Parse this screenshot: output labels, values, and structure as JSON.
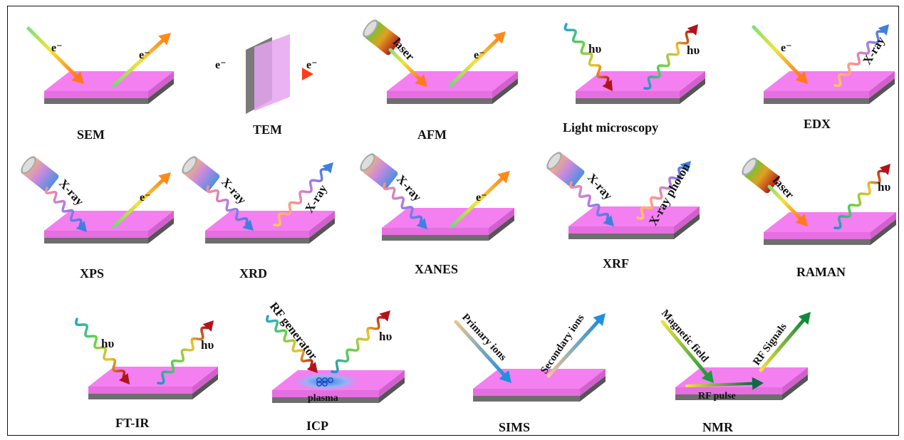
{
  "panels": [
    {
      "id": "sem",
      "title": "SEM",
      "incoming": "e⁻",
      "outgoing": "e⁻"
    },
    {
      "id": "tem",
      "title": "TEM",
      "incoming": "e⁻",
      "outgoing": "e⁻"
    },
    {
      "id": "afm",
      "title": "AFM",
      "incoming": "laser",
      "outgoing": "e⁻"
    },
    {
      "id": "light",
      "title": "Light microscopy",
      "incoming": "hυ",
      "outgoing": "hυ"
    },
    {
      "id": "edx",
      "title": "EDX",
      "incoming": "e⁻",
      "outgoing": "X-ray"
    },
    {
      "id": "xps",
      "title": "XPS",
      "incoming": "X-ray",
      "outgoing": "e⁻"
    },
    {
      "id": "xrd",
      "title": "XRD",
      "incoming": "X-ray",
      "outgoing": "X-ray"
    },
    {
      "id": "xanes",
      "title": "XANES",
      "incoming": "X-ray",
      "outgoing": "e⁻"
    },
    {
      "id": "xrf",
      "title": "XRF",
      "incoming": "X-ray",
      "outgoing": "X-ray photon"
    },
    {
      "id": "raman",
      "title": "RAMAN",
      "incoming": "laser",
      "outgoing": "hυ"
    },
    {
      "id": "ftir",
      "title": "FT-IR",
      "incoming": "hυ",
      "outgoing": "hυ"
    },
    {
      "id": "icp",
      "title": "ICP",
      "incoming": "RF generator",
      "outgoing": "hυ",
      "extra": "plasma"
    },
    {
      "id": "sims",
      "title": "SIMS",
      "incoming": "Primary ions",
      "outgoing": "Secondary ions"
    },
    {
      "id": "nmr",
      "title": "NMR",
      "incoming": "Magnetic field",
      "outgoing": "RF Signals",
      "extra": "RF pulse"
    }
  ],
  "colors": {
    "slab_top": "#f47ff0",
    "slab_front": "#e56ee1",
    "slab_base": "#6e6e6e",
    "text": "#111111",
    "frame": "#111111"
  }
}
